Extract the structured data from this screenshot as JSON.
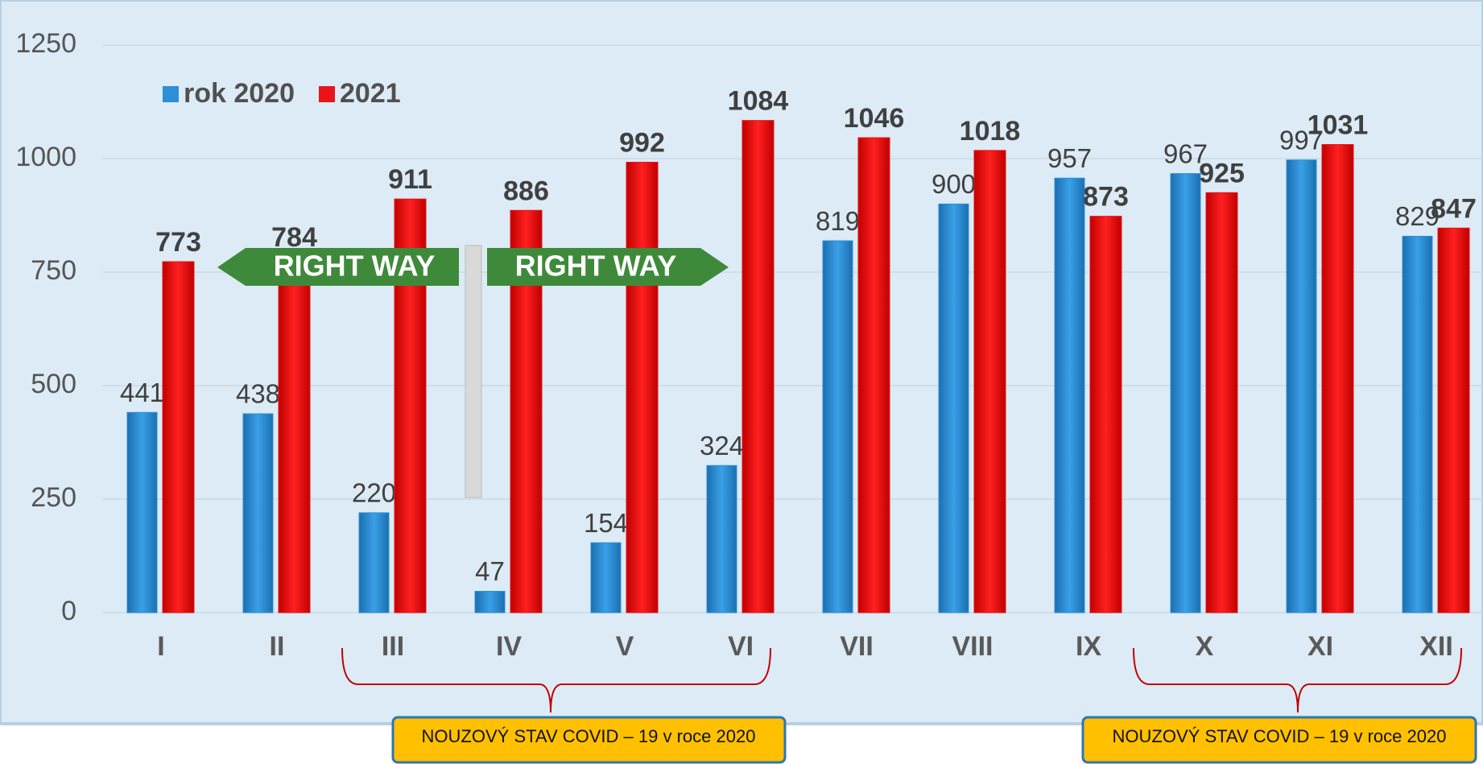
{
  "chart_data": {
    "type": "bar",
    "categories": [
      "I",
      "II",
      "III",
      "IV",
      "V",
      "VI",
      "VII",
      "VIII",
      "IX",
      "X",
      "XI",
      "XII"
    ],
    "series": [
      {
        "name": "rok 2020",
        "color": "#2e8fd6",
        "values": [
          441,
          438,
          220,
          47,
          154,
          324,
          819,
          900,
          957,
          967,
          997,
          829
        ]
      },
      {
        "name": "2021",
        "color": "#e8141a",
        "values": [
          773,
          784,
          911,
          886,
          992,
          1084,
          1046,
          1018,
          873,
          925,
          1031,
          847
        ]
      }
    ],
    "ylim": [
      0,
      1250
    ],
    "yticks": [
      0,
      250,
      500,
      750,
      1000,
      1250
    ],
    "grid": true,
    "legend": "top-left",
    "annotations": [
      "RIGHT WAY",
      "RIGHT WAY",
      "NOUZOVÝ STAV COVID – 19 v roce  2020",
      "NOUZOVÝ STAV COVID – 19 v roce  2020"
    ]
  }
}
